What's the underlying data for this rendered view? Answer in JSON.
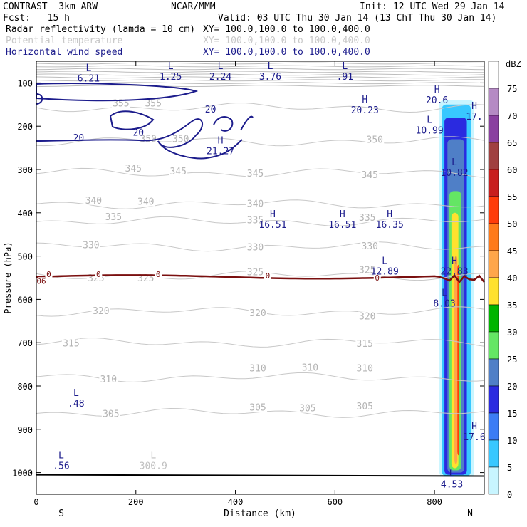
{
  "header": {
    "model": "CONTRAST  3km ARW",
    "org": "NCAR/MMM",
    "init": "Init: 12 UTC Wed 29 Jan 14",
    "fcst": "Fcst:   15 h",
    "valid": "Valid: 03 UTC Thu 30 Jan 14 (13 ChT Thu 30 Jan 14)"
  },
  "fields": [
    {
      "name": "Radar reflectivity (lamda = 10 cm)",
      "xy": "XY= 100.0,100.0 to 100.0,400.0",
      "color": "#000000"
    },
    {
      "name": "Potential temperature",
      "xy": "XY= 100.0,100.0 to 100.0,400.0",
      "color": "#c8c8c8"
    },
    {
      "name": "Horizontal wind speed",
      "xy": "XY= 100.0,100.0 to 100.0,400.0",
      "color": "#1c1c8c"
    }
  ],
  "chart_data": {
    "type": "cross-section",
    "xlabel": "Distance (km)",
    "ylabel": "Pressure (hPa)",
    "xlim": [
      0,
      900
    ],
    "ylim": [
      1050,
      50
    ],
    "x_ticks": [
      "0",
      "200",
      "400",
      "600",
      "800"
    ],
    "y_ticks": [
      "100",
      "200",
      "300",
      "400",
      "500",
      "600",
      "700",
      "800",
      "900",
      "1000"
    ],
    "left_end": "S",
    "right_end": "N",
    "colorbar": {
      "unit": "dBZ",
      "levels": [
        "75",
        "70",
        "65",
        "60",
        "55",
        "50",
        "45",
        "40",
        "35",
        "30",
        "25",
        "20",
        "15",
        "10",
        "5",
        "0"
      ],
      "colors": [
        "#ffffff",
        "#b58ac4",
        "#8a3fa0",
        "#a04040",
        "#c81e1e",
        "#ff3c0a",
        "#ff7a1a",
        "#ffa64a",
        "#ffe12e",
        "#00b400",
        "#64e664",
        "#4f7fc7",
        "#2a2ae0",
        "#3c7cf5",
        "#38c8ff",
        "#c8f5ff"
      ]
    },
    "theta_contours": [
      {
        "label": "355",
        "p": 157
      },
      {
        "label": "350",
        "p": 235
      },
      {
        "label": "345",
        "p": 308
      },
      {
        "label": "340",
        "p": 380
      },
      {
        "label": "335",
        "p": 420
      },
      {
        "label": "330",
        "p": 478
      },
      {
        "label": "325",
        "p": 545
      },
      {
        "label": "320",
        "p": 628
      },
      {
        "label": "315",
        "p": 700
      },
      {
        "label": "310",
        "p": 780
      },
      {
        "label": "305",
        "p": 862
      }
    ],
    "theta_labels": [
      {
        "text": "355",
        "x": 170,
        "p": 148
      },
      {
        "text": "355",
        "x": 235,
        "p": 148
      },
      {
        "text": "350",
        "x": 225,
        "p": 230
      },
      {
        "text": "350",
        "x": 290,
        "p": 230
      },
      {
        "text": "350",
        "x": 680,
        "p": 232
      },
      {
        "text": "345",
        "x": 195,
        "p": 298
      },
      {
        "text": "345",
        "x": 285,
        "p": 305
      },
      {
        "text": "345",
        "x": 440,
        "p": 310
      },
      {
        "text": "345",
        "x": 670,
        "p": 313
      },
      {
        "text": "340",
        "x": 115,
        "p": 372
      },
      {
        "text": "340",
        "x": 220,
        "p": 375
      },
      {
        "text": "340",
        "x": 440,
        "p": 380
      },
      {
        "text": "335",
        "x": 155,
        "p": 410
      },
      {
        "text": "335",
        "x": 440,
        "p": 418
      },
      {
        "text": "335",
        "x": 665,
        "p": 412
      },
      {
        "text": "330",
        "x": 110,
        "p": 475
      },
      {
        "text": "330",
        "x": 440,
        "p": 480
      },
      {
        "text": "330",
        "x": 670,
        "p": 478
      },
      {
        "text": "325",
        "x": 440,
        "p": 538
      },
      {
        "text": "325",
        "x": 665,
        "p": 533
      },
      {
        "text": "325",
        "x": 120,
        "p": 552
      },
      {
        "text": "325",
        "x": 220,
        "p": 552
      },
      {
        "text": "320",
        "x": 130,
        "p": 627
      },
      {
        "text": "320",
        "x": 445,
        "p": 632
      },
      {
        "text": "320",
        "x": 665,
        "p": 640
      },
      {
        "text": "315",
        "x": 70,
        "p": 702
      },
      {
        "text": "315",
        "x": 660,
        "p": 703
      },
      {
        "text": "310",
        "x": 145,
        "p": 785
      },
      {
        "text": "310",
        "x": 445,
        "p": 760
      },
      {
        "text": "310",
        "x": 550,
        "p": 758
      },
      {
        "text": "310",
        "x": 660,
        "p": 760
      },
      {
        "text": "305",
        "x": 150,
        "p": 865
      },
      {
        "text": "305",
        "x": 445,
        "p": 850
      },
      {
        "text": "305",
        "x": 545,
        "p": 852
      },
      {
        "text": "305",
        "x": 660,
        "p": 848
      }
    ],
    "wind_labels": [
      {
        "text": "20",
        "x": 350,
        "p": 162
      },
      {
        "text": "20",
        "x": 205,
        "p": 215
      },
      {
        "text": "20",
        "x": 85,
        "p": 228
      }
    ],
    "extrema": [
      {
        "letter": "L",
        "value": "6.21",
        "x": 105,
        "p": 72,
        "color": "#1c1c8c"
      },
      {
        "letter": "L",
        "value": "1.25",
        "x": 270,
        "p": 68,
        "color": "#1c1c8c"
      },
      {
        "letter": "L",
        "value": "2.24",
        "x": 370,
        "p": 68,
        "color": "#1c1c8c"
      },
      {
        "letter": "L",
        "value": "3.76",
        "x": 470,
        "p": 68,
        "color": "#1c1c8c"
      },
      {
        "letter": "L",
        "value": ".91",
        "x": 620,
        "p": 68,
        "color": "#1c1c8c"
      },
      {
        "letter": "H",
        "value": "20.23",
        "x": 660,
        "p": 145,
        "color": "#1c1c8c"
      },
      {
        "letter": "H",
        "value": "20.6",
        "x": 805,
        "p": 122,
        "color": "#1c1c8c"
      },
      {
        "letter": "H",
        "value": "17.",
        "x": 880,
        "p": 160,
        "color": "#1c1c8c"
      },
      {
        "letter": "L",
        "value": "10.99",
        "x": 790,
        "p": 192,
        "color": "#1c1c8c"
      },
      {
        "letter": "H",
        "value": "21.27",
        "x": 370,
        "p": 240,
        "color": "#1c1c8c"
      },
      {
        "letter": "L",
        "value": "10.82",
        "x": 840,
        "p": 290,
        "color": "#1c1c8c"
      },
      {
        "letter": "H",
        "value": "16.51",
        "x": 475,
        "p": 410,
        "color": "#1c1c8c"
      },
      {
        "letter": "H",
        "value": "16.51",
        "x": 615,
        "p": 410,
        "color": "#1c1c8c"
      },
      {
        "letter": "H",
        "value": "16.35",
        "x": 710,
        "p": 410,
        "color": "#1c1c8c"
      },
      {
        "letter": "L",
        "value": "12.89",
        "x": 700,
        "p": 518,
        "color": "#1c1c8c"
      },
      {
        "letter": "H",
        "value": "22.83",
        "x": 840,
        "p": 518,
        "color": "#1c1c8c"
      },
      {
        "letter": "L",
        "value": "8.03",
        "x": 820,
        "p": 592,
        "color": "#1c1c8c"
      },
      {
        "letter": "L",
        "value": ".48",
        "x": 80,
        "p": 823,
        "color": "#1c1c8c"
      },
      {
        "letter": "H",
        "value": "17.6",
        "x": 880,
        "p": 900,
        "color": "#1c1c8c"
      },
      {
        "letter": "L",
        "value": ".56",
        "x": 50,
        "p": 967,
        "color": "#1c1c8c"
      },
      {
        "letter": "L",
        "value": "4.53",
        "x": 835,
        "p": 1010,
        "color": "#1c1c8c"
      },
      {
        "letter": "L",
        "value": "300.9",
        "x": 235,
        "p": 967,
        "color": "#c0c0c0"
      }
    ],
    "tropopause_labels": [
      {
        "text": "0",
        "x": 25,
        "p": 542
      },
      {
        "text": "0",
        "x": 125,
        "p": 542
      },
      {
        "text": "0",
        "x": 245,
        "p": 542
      },
      {
        "text": "0",
        "x": 465,
        "p": 545
      },
      {
        "text": "0",
        "x": 685,
        "p": 550
      },
      {
        "text": "06",
        "x": 10,
        "p": 557
      }
    ]
  }
}
